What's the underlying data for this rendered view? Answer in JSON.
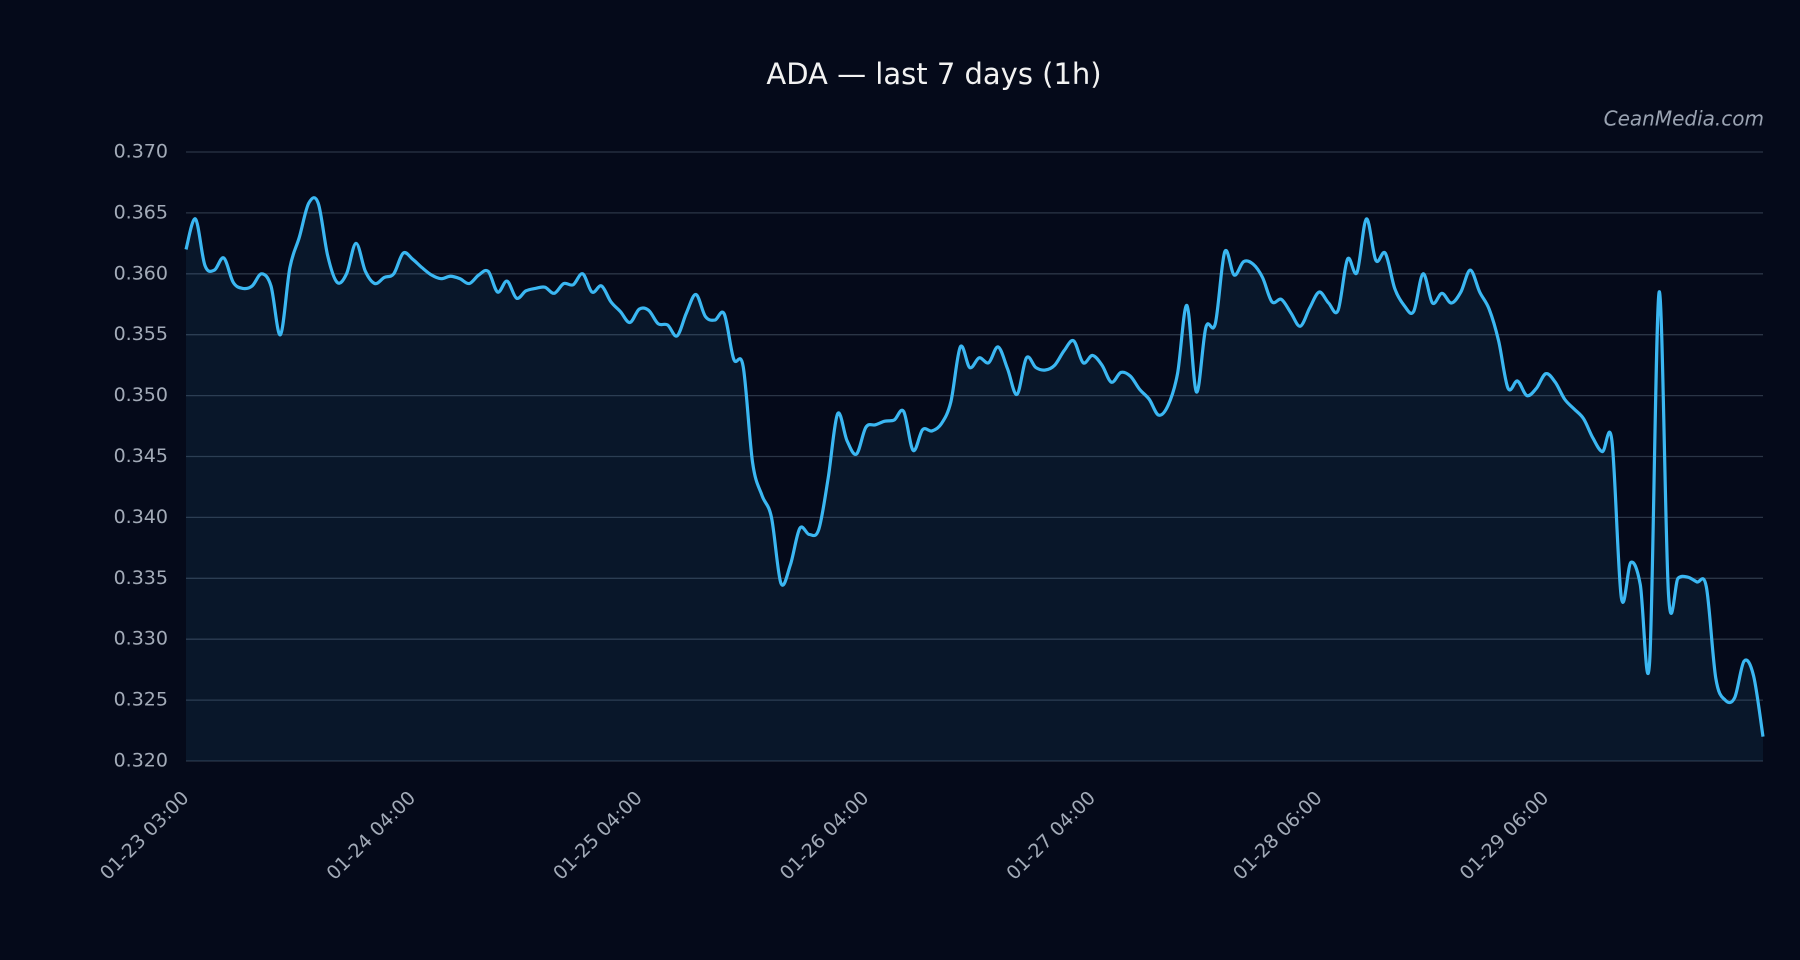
{
  "chart_data": {
    "type": "line",
    "title": "ADA — last 7 days (1h)",
    "watermark": "CeanMedia.com",
    "color": "#3bb7f2",
    "grid": true,
    "ylim": [
      0.32,
      0.37
    ],
    "yticks": [
      {
        "value": 0.32,
        "label": "0.320"
      },
      0.325,
      {
        "value": 0.33,
        "label": "0.330"
      },
      0.335,
      {
        "value": 0.34,
        "label": "0.340"
      },
      0.345,
      {
        "value": 0.35,
        "label": "0.350"
      },
      0.355,
      {
        "value": 0.36,
        "label": "0.360"
      },
      0.365,
      {
        "value": 0.37,
        "label": "0.370"
      }
    ],
    "categories": [
      "01-23 03:00",
      null,
      null,
      null,
      null,
      null,
      null,
      null,
      null,
      null,
      null,
      null,
      null,
      null,
      null,
      null,
      null,
      null,
      null,
      null,
      null,
      null,
      null,
      null,
      "01-24 04:00",
      null,
      null,
      null,
      null,
      null,
      null,
      null,
      null,
      null,
      null,
      null,
      null,
      null,
      null,
      null,
      null,
      null,
      null,
      null,
      null,
      null,
      null,
      null,
      "01-25 04:00",
      null,
      null,
      null,
      null,
      null,
      null,
      null,
      null,
      null,
      null,
      null,
      null,
      null,
      null,
      null,
      null,
      null,
      null,
      null,
      null,
      null,
      null,
      null,
      "01-26 04:00",
      null,
      null,
      null,
      null,
      null,
      null,
      null,
      null,
      null,
      null,
      null,
      null,
      null,
      null,
      null,
      null,
      null,
      null,
      null,
      null,
      null,
      null,
      null,
      "01-27 04:00",
      null,
      null,
      null,
      null,
      null,
      null,
      null,
      null,
      null,
      null,
      null,
      null,
      null,
      null,
      null,
      null,
      null,
      null,
      null,
      null,
      null,
      null,
      null,
      "01-28 06:00",
      null,
      null,
      null,
      null,
      null,
      null,
      null,
      null,
      null,
      null,
      null,
      null,
      null,
      null,
      null,
      null,
      null,
      null,
      null,
      null,
      null,
      null,
      null,
      "01-29 06:00",
      null,
      null,
      null,
      null,
      null,
      null,
      null,
      null,
      null,
      null,
      null,
      null,
      null,
      null,
      null,
      null,
      null,
      null,
      null,
      null,
      null,
      null,
      null
    ],
    "values": [
      0.362,
      0.3645,
      0.3607,
      0.3603,
      0.3613,
      0.3593,
      0.3588,
      0.359,
      0.36,
      0.359,
      0.355,
      0.3605,
      0.363,
      0.3658,
      0.3658,
      0.3615,
      0.3593,
      0.36,
      0.3625,
      0.3602,
      0.3592,
      0.3597,
      0.36,
      0.3617,
      0.3612,
      0.3605,
      0.3599,
      0.3596,
      0.3598,
      0.3596,
      0.3592,
      0.3599,
      0.3602,
      0.3585,
      0.3594,
      0.358,
      0.3586,
      0.3588,
      0.3589,
      0.3584,
      0.3592,
      0.3591,
      0.36,
      0.3585,
      0.359,
      0.3577,
      0.3569,
      0.356,
      0.3571,
      0.357,
      0.3559,
      0.3558,
      0.3549,
      0.3568,
      0.3583,
      0.3565,
      0.3562,
      0.3567,
      0.353,
      0.3524,
      0.3445,
      0.3418,
      0.34,
      0.3346,
      0.3361,
      0.3391,
      0.3386,
      0.339,
      0.3432,
      0.3485,
      0.3463,
      0.3452,
      0.3474,
      0.3476,
      0.3479,
      0.348,
      0.3487,
      0.3455,
      0.3472,
      0.3471,
      0.3477,
      0.3495,
      0.354,
      0.3523,
      0.3531,
      0.3527,
      0.354,
      0.3522,
      0.3501,
      0.3531,
      0.3523,
      0.3521,
      0.3525,
      0.3537,
      0.3545,
      0.3527,
      0.3533,
      0.3525,
      0.3511,
      0.3519,
      0.3516,
      0.3505,
      0.3497,
      0.3484,
      0.3492,
      0.3518,
      0.3574,
      0.3503,
      0.3556,
      0.3559,
      0.3618,
      0.3599,
      0.361,
      0.3608,
      0.3597,
      0.3577,
      0.3579,
      0.3568,
      0.3557,
      0.3572,
      0.3585,
      0.3576,
      0.357,
      0.3612,
      0.3601,
      0.3645,
      0.3611,
      0.3617,
      0.3588,
      0.3574,
      0.3569,
      0.36,
      0.3576,
      0.3584,
      0.3576,
      0.3585,
      0.3603,
      0.3585,
      0.3571,
      0.3545,
      0.3506,
      0.3512,
      0.35,
      0.3506,
      0.3518,
      0.3511,
      0.3497,
      0.3489,
      0.3481,
      0.3465,
      0.3454,
      0.3463,
      0.3334,
      0.3363,
      0.3345,
      0.3282,
      0.3585,
      0.3336,
      0.335,
      0.3351,
      0.3347,
      0.3343,
      0.3268,
      0.325,
      0.3252,
      0.3282,
      0.327,
      0.322
    ]
  }
}
